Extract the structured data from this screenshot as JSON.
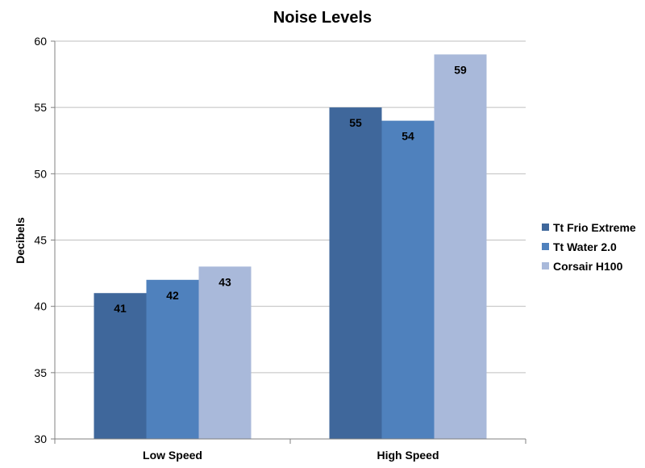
{
  "chart_data": {
    "type": "bar",
    "title": "Noise Levels",
    "xlabel": "",
    "ylabel": "Decibels",
    "categories": [
      "Low Speed",
      "High Speed"
    ],
    "series": [
      {
        "name": "Tt Frio Extreme",
        "values": [
          41,
          55
        ],
        "color": "#3F679B"
      },
      {
        "name": "Tt Water 2.0",
        "values": [
          42,
          54
        ],
        "color": "#4F81BD"
      },
      {
        "name": "Corsair H100",
        "values": [
          43,
          59
        ],
        "color": "#A9B9DA"
      }
    ],
    "ylim": [
      30,
      60
    ],
    "yticks": [
      30,
      35,
      40,
      45,
      50,
      55,
      60
    ],
    "grid": true,
    "legend": "right"
  }
}
